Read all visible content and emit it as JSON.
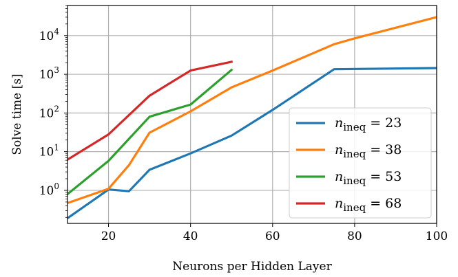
{
  "chart_data": {
    "type": "line",
    "title": "",
    "xlabel": "Neurons per Hidden Layer",
    "ylabel": "Solve time [s]",
    "xlim": [
      10,
      100
    ],
    "ylim": [
      0.14,
      60000
    ],
    "yscale": "log",
    "grid": true,
    "legend_position": "lower-right",
    "x_ticks": [
      {
        "value": 20,
        "label": "20"
      },
      {
        "value": 40,
        "label": "40"
      },
      {
        "value": 60,
        "label": "60"
      },
      {
        "value": 80,
        "label": "80"
      },
      {
        "value": 100,
        "label": "100"
      }
    ],
    "y_ticks": [
      {
        "value": 1,
        "base": "10",
        "exp": "0"
      },
      {
        "value": 10,
        "base": "10",
        "exp": "1"
      },
      {
        "value": 100,
        "base": "10",
        "exp": "2"
      },
      {
        "value": 1000,
        "base": "10",
        "exp": "3"
      },
      {
        "value": 10000,
        "base": "10",
        "exp": "4"
      }
    ],
    "series": [
      {
        "var": "n",
        "sub": "ineq",
        "rest": " = 23",
        "color": "#1f77b4",
        "points": [
          [
            10,
            0.19
          ],
          [
            20,
            1.05
          ],
          [
            25,
            0.95
          ],
          [
            30,
            3.4
          ],
          [
            40,
            9.0
          ],
          [
            50,
            26
          ],
          [
            60,
            120
          ],
          [
            75,
            1350
          ],
          [
            100,
            1450
          ]
        ]
      },
      {
        "var": "n",
        "sub": "ineq",
        "rest": " = 38",
        "color": "#ff7f0e",
        "points": [
          [
            10,
            0.47
          ],
          [
            20,
            1.1
          ],
          [
            25,
            4.5
          ],
          [
            30,
            31
          ],
          [
            40,
            110
          ],
          [
            50,
            460
          ],
          [
            60,
            1250
          ],
          [
            75,
            6000
          ],
          [
            80,
            8500
          ],
          [
            100,
            30000
          ]
        ]
      },
      {
        "var": "n",
        "sub": "ineq",
        "rest": " = 53",
        "color": "#2ca02c",
        "points": [
          [
            10,
            0.8
          ],
          [
            20,
            5.8
          ],
          [
            30,
            80
          ],
          [
            40,
            165
          ],
          [
            50,
            1300
          ]
        ]
      },
      {
        "var": "n",
        "sub": "ineq",
        "rest": " = 68",
        "color": "#d62728",
        "points": [
          [
            10,
            6.2
          ],
          [
            20,
            28
          ],
          [
            30,
            280
          ],
          [
            40,
            1250
          ],
          [
            50,
            2100
          ]
        ]
      }
    ]
  }
}
